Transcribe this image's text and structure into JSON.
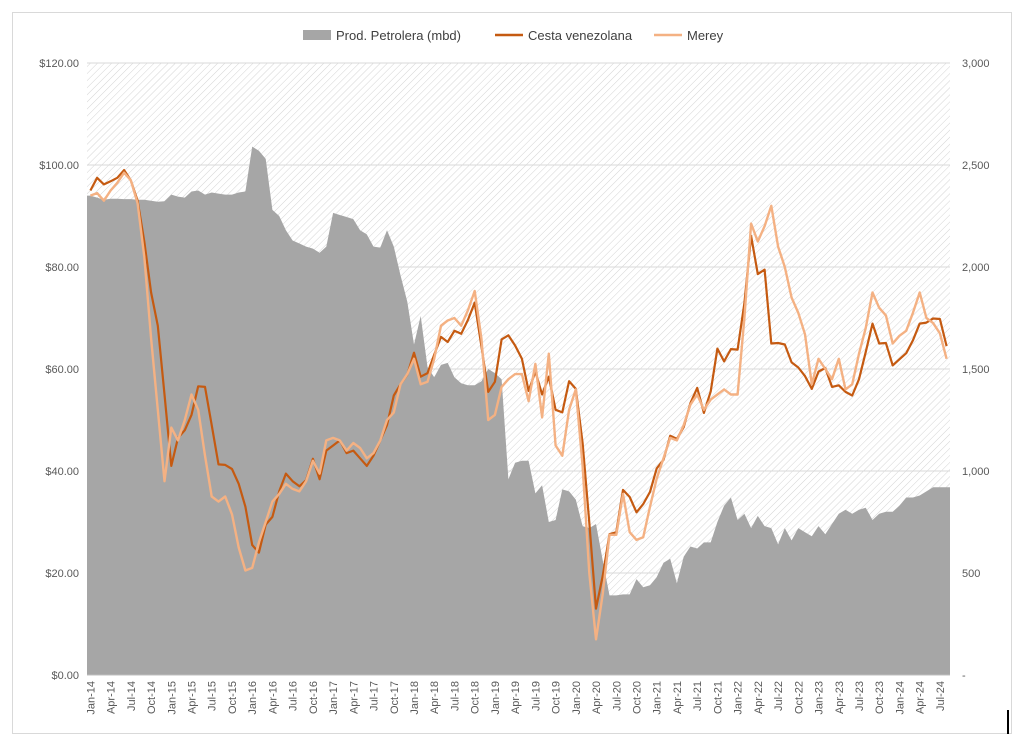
{
  "chart_data": {
    "type": "line",
    "title": "",
    "xlabel": "",
    "ylabel": "",
    "legend_position": "top-center",
    "categories": [
      "Jan-14",
      "Feb-14",
      "Mar-14",
      "Apr-14",
      "May-14",
      "Jun-14",
      "Jul-14",
      "Aug-14",
      "Sep-14",
      "Oct-14",
      "Nov-14",
      "Dec-14",
      "Jan-15",
      "Feb-15",
      "Mar-15",
      "Apr-15",
      "May-15",
      "Jun-15",
      "Jul-15",
      "Aug-15",
      "Sep-15",
      "Oct-15",
      "Nov-15",
      "Dec-15",
      "Jan-16",
      "Feb-16",
      "Mar-16",
      "Apr-16",
      "May-16",
      "Jun-16",
      "Jul-16",
      "Aug-16",
      "Sep-16",
      "Oct-16",
      "Nov-16",
      "Dec-16",
      "Jan-17",
      "Feb-17",
      "Mar-17",
      "Apr-17",
      "May-17",
      "Jun-17",
      "Jul-17",
      "Aug-17",
      "Sep-17",
      "Oct-17",
      "Nov-17",
      "Dec-17",
      "Jan-18",
      "Feb-18",
      "Mar-18",
      "Apr-18",
      "May-18",
      "Jun-18",
      "Jul-18",
      "Aug-18",
      "Sep-18",
      "Oct-18",
      "Nov-18",
      "Dec-18",
      "Jan-19",
      "Feb-19",
      "Mar-19",
      "Apr-19",
      "May-19",
      "Jun-19",
      "Jul-19",
      "Aug-19",
      "Sep-19",
      "Oct-19",
      "Nov-19",
      "Dec-19",
      "Jan-20",
      "Feb-20",
      "Mar-20",
      "Apr-20",
      "May-20",
      "Jun-20",
      "Jul-20",
      "Aug-20",
      "Sep-20",
      "Oct-20",
      "Nov-20",
      "Dec-20",
      "Jan-21",
      "Feb-21",
      "Mar-21",
      "Apr-21",
      "May-21",
      "Jun-21",
      "Jul-21",
      "Aug-21",
      "Sep-21",
      "Oct-21",
      "Nov-21",
      "Dec-21",
      "Jan-22",
      "Feb-22",
      "Mar-22",
      "Apr-22",
      "May-22",
      "Jun-22",
      "Jul-22",
      "Aug-22",
      "Sep-22",
      "Oct-22",
      "Nov-22",
      "Dec-22",
      "Jan-23",
      "Feb-23",
      "Mar-23",
      "Apr-23",
      "May-23",
      "Jun-23",
      "Jul-23",
      "Aug-23",
      "Sep-23",
      "Oct-23",
      "Nov-23",
      "Dec-23",
      "Jan-24",
      "Feb-24",
      "Mar-24",
      "Apr-24",
      "May-24",
      "Jun-24",
      "Jul-24",
      "Aug-24"
    ],
    "tick_labels": [
      "Jan-14",
      "Apr-14",
      "Jul-14",
      "Oct-14",
      "Jan-15",
      "Apr-15",
      "Jul-15",
      "Oct-15",
      "Jan-16",
      "Apr-16",
      "Jul-16",
      "Oct-16",
      "Jan-17",
      "Apr-17",
      "Jul-17",
      "Oct-17",
      "Jan-18",
      "Apr-18",
      "Jul-18",
      "Oct-18",
      "Jan-19",
      "Apr-19",
      "Jul-19",
      "Oct-19",
      "Jan-20",
      "Apr-20",
      "Jul-20",
      "Oct-20",
      "Jan-21",
      "Apr-21",
      "Jul-21",
      "Oct-21",
      "Jan-22",
      "Apr-22",
      "Jul-22",
      "Oct-22",
      "Jan-23",
      "Apr-23",
      "Jul-23",
      "Oct-23",
      "Jan-24",
      "Apr-24",
      "Jul-24"
    ],
    "y_left": {
      "min": 0,
      "max": 120,
      "ticks": [
        0,
        20,
        40,
        60,
        80,
        100,
        120
      ],
      "tick_labels": [
        "$0.00",
        "$20.00",
        "$40.00",
        "$60.00",
        "$80.00",
        "$100.00",
        "$120.00"
      ]
    },
    "y_right": {
      "min": 0,
      "max": 3000,
      "ticks": [
        0,
        500,
        1000,
        1500,
        2000,
        2500,
        3000
      ],
      "tick_labels": [
        "-",
        "500",
        "1,000",
        "1,500",
        "2,000",
        "2,500",
        "3,000"
      ]
    },
    "grid": true,
    "series": [
      {
        "name": "Prod. Petrolera (mbd)",
        "type": "area",
        "axis": "right",
        "color": "#a6a6a6",
        "values": [
          2350,
          2340,
          2330,
          2335,
          2335,
          2333,
          2333,
          2330,
          2330,
          2325,
          2320,
          2322,
          2355,
          2345,
          2340,
          2370,
          2375,
          2355,
          2365,
          2360,
          2355,
          2355,
          2365,
          2370,
          2590,
          2570,
          2530,
          2280,
          2250,
          2180,
          2130,
          2115,
          2100,
          2090,
          2070,
          2100,
          2265,
          2255,
          2245,
          2235,
          2180,
          2160,
          2100,
          2095,
          2180,
          2100,
          1960,
          1830,
          1620,
          1760,
          1510,
          1460,
          1520,
          1530,
          1460,
          1430,
          1420,
          1420,
          1440,
          1500,
          1480,
          1450,
          960,
          1040,
          1050,
          1050,
          890,
          930,
          750,
          760,
          910,
          900,
          860,
          730,
          720,
          740,
          560,
          390,
          390,
          395,
          395,
          470,
          430,
          440,
          480,
          550,
          570,
          450,
          580,
          630,
          620,
          650,
          650,
          750,
          830,
          870,
          760,
          790,
          720,
          780,
          730,
          720,
          640,
          720,
          660,
          720,
          700,
          680,
          730,
          690,
          740,
          790,
          810,
          790,
          810,
          820,
          760,
          790,
          800,
          800,
          830,
          870,
          870,
          880,
          900,
          920,
          920,
          920
        ],
        "note_label": ""
      },
      {
        "name": "Cesta venezolana",
        "type": "line",
        "axis": "left",
        "color": "#c55a11",
        "values": [
          95.0,
          97.5,
          96.2,
          96.8,
          97.5,
          99.0,
          97.0,
          93.0,
          85.0,
          75.0,
          68.5,
          55.0,
          41.0,
          46.5,
          48.0,
          51.0,
          56.6,
          56.5,
          49.0,
          41.3,
          41.2,
          40.4,
          37.5,
          33.0,
          25.5,
          24.0,
          29.5,
          31.0,
          36.0,
          39.5,
          38.0,
          37.0,
          38.2,
          42.4,
          38.4,
          44.0,
          45.0,
          46.0,
          43.5,
          44.0,
          42.5,
          41.0,
          43.0,
          46.0,
          49.0,
          54.8,
          57.0,
          58.9,
          63.2,
          58.5,
          59.2,
          62.8,
          66.3,
          65.3,
          67.5,
          66.9,
          69.6,
          73.0,
          64.5,
          55.5,
          57.5,
          65.8,
          66.6,
          64.6,
          62.0,
          55.7,
          59.5,
          55.0,
          58.5,
          52.0,
          51.5,
          57.6,
          56.1,
          45.5,
          29.9,
          13.0,
          19.5,
          27.6,
          28.0,
          36.3,
          34.9,
          31.9,
          33.5,
          35.9,
          40.5,
          42.2,
          46.9,
          46.3,
          48.6,
          53.3,
          56.3,
          51.4,
          55.6,
          64.0,
          61.5,
          63.9,
          63.8,
          72.9,
          86.1,
          78.6,
          79.5,
          65.0,
          65.1,
          64.8,
          61.3,
          60.3,
          58.6,
          56.1,
          59.5,
          60.2,
          56.5,
          56.8,
          55.5,
          54.8,
          58.0,
          63.3,
          68.9,
          65.0,
          65.1,
          60.7,
          61.9,
          63.1,
          65.6,
          68.9,
          69.1,
          69.9,
          69.8,
          64.5
        ]
      },
      {
        "name": "Merey",
        "type": "line",
        "axis": "left",
        "color": "#f4b183",
        "values": [
          94.0,
          94.5,
          93.0,
          95.0,
          96.5,
          98.5,
          97.0,
          92.5,
          82.0,
          66.0,
          52.0,
          38.0,
          48.5,
          46.0,
          50.0,
          55.0,
          52.0,
          43.0,
          35.0,
          34.0,
          35.0,
          31.5,
          25.0,
          20.5,
          21.0,
          26.0,
          30.0,
          34.0,
          35.5,
          37.5,
          36.5,
          36.0,
          38.0,
          42.0,
          39.5,
          46.0,
          46.5,
          46.0,
          44.0,
          45.5,
          44.5,
          42.5,
          43.5,
          46.0,
          50.0,
          51.5,
          57.0,
          59.0,
          62.0,
          57.0,
          57.5,
          62.0,
          68.5,
          69.5,
          70.0,
          68.5,
          71.5,
          75.3,
          66.0,
          50.0,
          51.0,
          56.5,
          58.0,
          59.0,
          59.0,
          53.7,
          61.0,
          50.5,
          63.0,
          45.0,
          43.0,
          52.0,
          56.0,
          41.0,
          20.0,
          7.0,
          16.0,
          27.5,
          27.5,
          35.5,
          28.0,
          26.5,
          27.0,
          33.0,
          38.5,
          42.5,
          46.5,
          46.0,
          49.0,
          53.0,
          55.0,
          52.0,
          54.0,
          55.0,
          56.0,
          55.0,
          55.0,
          70.0,
          88.5,
          85.0,
          88.0,
          92.0,
          84.0,
          80.0,
          74.0,
          71.0,
          66.8,
          57.0,
          62.0,
          60.0,
          58.0,
          62.0,
          56.0,
          57.0,
          63.0,
          68.0,
          75.0,
          72.0,
          70.5,
          65.0,
          66.5,
          67.5,
          71.0,
          75.0,
          70.0,
          69.0,
          67.0,
          62.0
        ]
      }
    ]
  }
}
